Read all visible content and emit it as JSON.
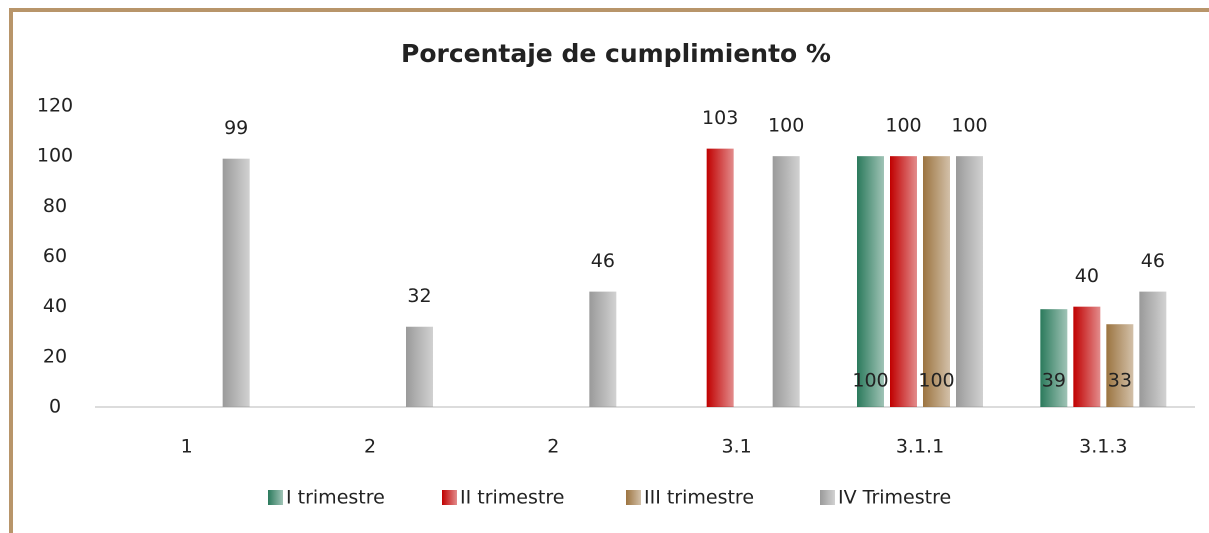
{
  "chart_data": {
    "type": "bar",
    "title": "Porcentaje de cumplimiento %",
    "categories": [
      "1",
      "2",
      "2",
      "3.1",
      "3.1.1",
      "3.1.3"
    ],
    "series": [
      {
        "name": "I trimestre",
        "color": "#2b7a5c",
        "label_position": "inside_base",
        "values": [
          null,
          null,
          null,
          null,
          100,
          39
        ]
      },
      {
        "name": "II trimestre",
        "color": "#c00000",
        "label_position": "outside_end",
        "values": [
          null,
          null,
          null,
          103,
          100,
          40
        ]
      },
      {
        "name": "III trimestre",
        "color": "#9c7440",
        "label_position": "inside_base",
        "values": [
          null,
          null,
          null,
          null,
          100,
          33
        ]
      },
      {
        "name": "IV Trimestre",
        "color": "#9a9a9a",
        "label_position": "outside_end",
        "values": [
          99,
          32,
          46,
          100,
          100,
          46
        ]
      }
    ],
    "ylim": [
      0,
      120
    ],
    "yticks": [
      0,
      20,
      40,
      60,
      80,
      100,
      120
    ],
    "grid": false,
    "legend": "bottom"
  }
}
